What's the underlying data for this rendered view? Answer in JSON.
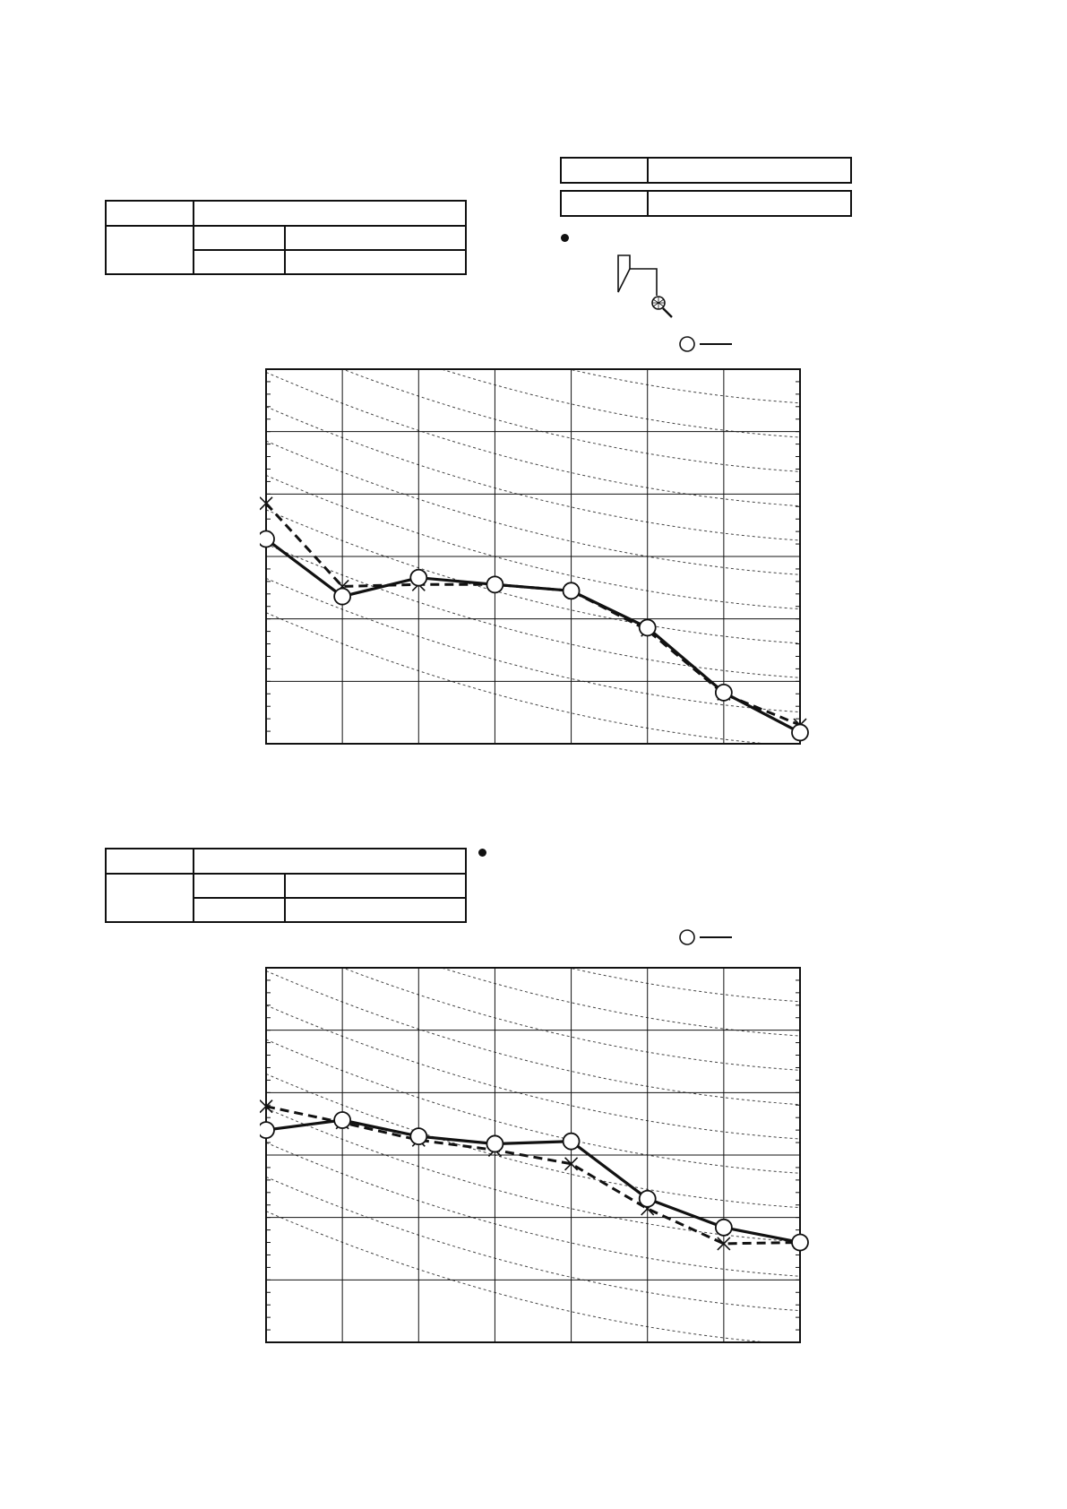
{
  "top_table": {
    "rows": [
      [
        "",
        ""
      ],
      [
        "",
        "",
        ""
      ],
      [
        "",
        ""
      ]
    ]
  },
  "header_boxes": [
    [
      "",
      ""
    ],
    [
      "",
      ""
    ]
  ],
  "bottom_table": {
    "rows": [
      [
        "",
        ""
      ],
      [
        "",
        "",
        ""
      ],
      [
        "",
        ""
      ]
    ]
  },
  "diagram": {
    "icon": "microphone-setup-icon"
  },
  "legend_icon": "circle-marker-solid-line",
  "colors": {
    "line": "#111111",
    "grid": "#111111",
    "contour": "#444444"
  },
  "chart_data": [
    {
      "type": "line",
      "title": "",
      "xlabel": "",
      "ylabel": "",
      "x": [
        0,
        1,
        2,
        3,
        4,
        5,
        6,
        7
      ],
      "xlim": [
        0,
        7
      ],
      "ylim": [
        0,
        60
      ],
      "grid": true,
      "series": [
        {
          "style": "solid",
          "marker": "circle",
          "values": [
            32.8,
            23.6,
            26.6,
            25.5,
            24.5,
            18.6,
            8.2,
            1.8
          ]
        },
        {
          "style": "dashed",
          "marker": "cross",
          "values": [
            38.5,
            25.2,
            25.5,
            25.5,
            24.5,
            18.2,
            8.0,
            3.0
          ]
        }
      ]
    },
    {
      "type": "line",
      "title": "",
      "xlabel": "",
      "ylabel": "",
      "x": [
        0,
        1,
        2,
        3,
        4,
        5,
        6,
        7
      ],
      "xlim": [
        0,
        7
      ],
      "ylim": [
        0,
        60
      ],
      "grid": true,
      "series": [
        {
          "style": "solid",
          "marker": "circle",
          "values": [
            34.0,
            35.6,
            33.0,
            31.8,
            32.2,
            23.0,
            18.4,
            16.0
          ]
        },
        {
          "style": "dashed",
          "marker": "cross",
          "values": [
            37.8,
            35.2,
            32.4,
            30.8,
            28.6,
            21.4,
            15.8,
            16.0
          ]
        }
      ]
    }
  ]
}
